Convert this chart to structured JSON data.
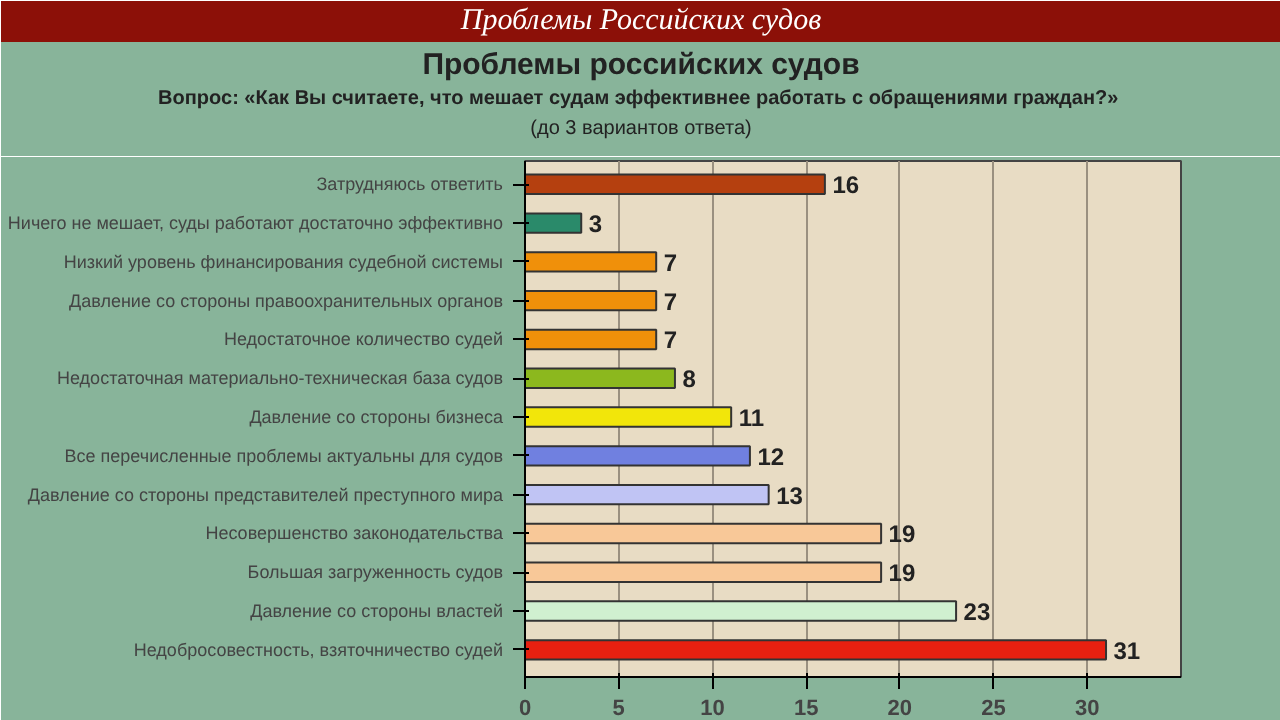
{
  "chart_data": {
    "type": "bar",
    "orientation": "horizontal",
    "title": "Проблемы российских судов",
    "subtitle": "Вопрос: «Как Вы считаете, что мешает судам  эффективнее работать с обращениями граждан?»",
    "annotations": [
      "(до 3 вариантов ответа)",
      "Проблемы Российских судов"
    ],
    "categories": [
      "Затрудняюсь ответить",
      "Ничего не мешает, суды работают достаточно эффективно",
      "Низкий уровень финансирования судебной системы",
      "Давление со стороны правоохранительных органов",
      "Недостаточное количество судей",
      "Недостаточная материально-техническая база судов",
      "Давление со стороны бизнеса",
      "Все перечисленные проблемы актуальны для судов",
      "Давление со стороны представителей преступного мира",
      "Несовершенство законодательства",
      "Большая загруженность судов",
      "Давление со стороны властей",
      "Недобросовестность, взяточничество судей"
    ],
    "values": [
      16,
      3,
      7,
      7,
      7,
      8,
      11,
      12,
      13,
      19,
      19,
      23,
      31
    ],
    "colors": [
      "#b5400f",
      "#2a8a6a",
      "#f0900a",
      "#f0900a",
      "#f0900a",
      "#8cb81e",
      "#f2e60a",
      "#7080e0",
      "#c0c4f4",
      "#f8c898",
      "#f8c898",
      "#d0f0d0",
      "#e82010"
    ],
    "xlim": [
      0,
      35
    ],
    "xticks": [
      0,
      5,
      10,
      15,
      20,
      25,
      30
    ],
    "grid": "x",
    "data_labels": true
  }
}
